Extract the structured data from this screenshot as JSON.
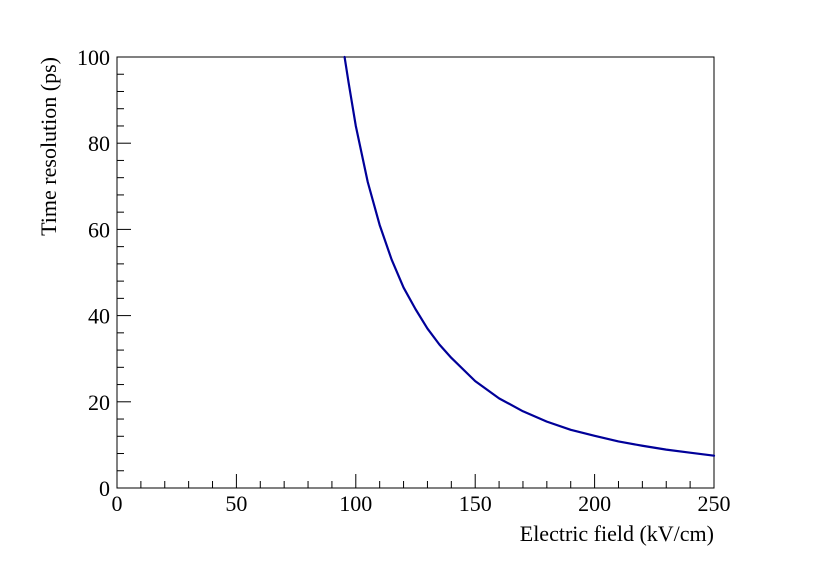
{
  "chart_data": {
    "type": "line",
    "title": "",
    "xlabel": "Electric field (kV/cm)",
    "ylabel": "Time resolution (ps)",
    "xlim": [
      0,
      250
    ],
    "ylim": [
      0,
      100
    ],
    "x_ticks": [
      0,
      50,
      100,
      150,
      200,
      250
    ],
    "y_ticks": [
      0,
      20,
      40,
      60,
      80,
      100
    ],
    "x_minor_step": 10,
    "y_minor_step": 4,
    "grid": false,
    "legend": "none",
    "series": [
      {
        "color": "#000099",
        "x": [
          95.3,
          97,
          100,
          105,
          110,
          115,
          120,
          125,
          130,
          135,
          140,
          150,
          160,
          170,
          180,
          190,
          200,
          210,
          220,
          230,
          240,
          250
        ],
        "y": [
          100,
          94,
          84,
          71,
          61,
          53,
          46.5,
          41.5,
          37,
          33.3,
          30.2,
          24.8,
          20.8,
          17.8,
          15.4,
          13.5,
          12.1,
          10.8,
          9.8,
          8.9,
          8.2,
          7.5
        ]
      }
    ]
  }
}
